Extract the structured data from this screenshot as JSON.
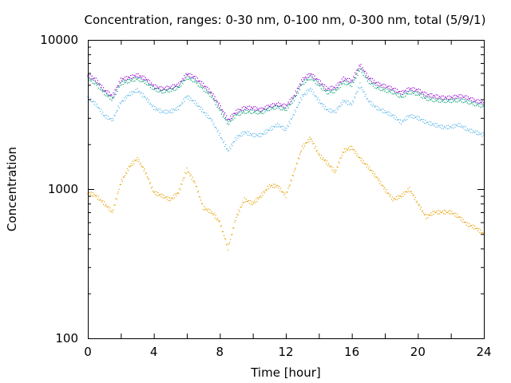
{
  "chart_data": {
    "type": "scatter",
    "title": "Concentration, ranges: 0-30 nm, 0-100 nm, 0-300 nm, total (5/9/1)",
    "xlabel": "Time [hour]",
    "ylabel": "Concentration",
    "xlim": [
      0,
      24
    ],
    "ylim": [
      100,
      10000
    ],
    "yscale": "log",
    "grid": false,
    "legend": "none",
    "x_ticks": [
      0,
      4,
      8,
      12,
      16,
      20,
      24
    ],
    "x_tick_labels": [
      "0",
      "4",
      "8",
      "12",
      "16",
      "20",
      "24"
    ],
    "y_ticks": [
      100,
      1000,
      10000
    ],
    "y_tick_labels": [
      "100",
      "1000",
      "10000"
    ],
    "series": [
      {
        "color": "#9400d3",
        "x": [
          0,
          0.5,
          1,
          1.5,
          2,
          2.5,
          3,
          3.5,
          4,
          4.5,
          5,
          5.5,
          6,
          6.5,
          7,
          7.5,
          8,
          8.5,
          9,
          9.5,
          10,
          10.5,
          11,
          11.5,
          12,
          12.5,
          13,
          13.5,
          14,
          14.5,
          15,
          15.5,
          16,
          16.5,
          17,
          17.5,
          18,
          18.5,
          19,
          19.5,
          20,
          20.5,
          21,
          21.5,
          22,
          22.5,
          23,
          23.5,
          24
        ],
        "y": [
          5800,
          5400,
          4600,
          4200,
          5400,
          5600,
          5800,
          5500,
          4900,
          4700,
          4800,
          5000,
          5900,
          5600,
          5000,
          4400,
          3600,
          2900,
          3300,
          3500,
          3500,
          3400,
          3600,
          3700,
          3600,
          4200,
          5400,
          5900,
          5300,
          4700,
          4800,
          5500,
          5300,
          6800,
          5600,
          5100,
          4900,
          4700,
          4400,
          4700,
          4600,
          4300,
          4200,
          4100,
          4100,
          4200,
          4100,
          3900,
          3800
        ]
      },
      {
        "color": "#009e73",
        "x": [
          0,
          0.5,
          1,
          1.5,
          2,
          2.5,
          3,
          3.5,
          4,
          4.5,
          5,
          5.5,
          6,
          6.5,
          7,
          7.5,
          8,
          8.5,
          9,
          9.5,
          10,
          10.5,
          11,
          11.5,
          12,
          12.5,
          13,
          13.5,
          14,
          14.5,
          15,
          15.5,
          16,
          16.5,
          17,
          17.5,
          18,
          18.5,
          19,
          19.5,
          20,
          20.5,
          21,
          21.5,
          22,
          22.5,
          23,
          23.5,
          24
        ],
        "y": [
          5500,
          5100,
          4400,
          4000,
          5100,
          5300,
          5500,
          5200,
          4700,
          4500,
          4600,
          4800,
          5600,
          5300,
          4700,
          4200,
          3400,
          2750,
          3150,
          3300,
          3300,
          3250,
          3450,
          3550,
          3400,
          4000,
          5100,
          5600,
          5000,
          4450,
          4550,
          5200,
          5000,
          6400,
          5300,
          4800,
          4600,
          4450,
          4150,
          4450,
          4350,
          4050,
          3950,
          3900,
          3900,
          3950,
          3850,
          3700,
          3600
        ]
      },
      {
        "color": "#56b4e9",
        "x": [
          0,
          0.5,
          1,
          1.5,
          2,
          2.5,
          3,
          3.5,
          4,
          4.5,
          5,
          5.5,
          6,
          6.5,
          7,
          7.5,
          8,
          8.5,
          9,
          9.5,
          10,
          10.5,
          11,
          11.5,
          12,
          12.5,
          13,
          13.5,
          14,
          14.5,
          15,
          15.5,
          16,
          16.5,
          17,
          17.5,
          18,
          18.5,
          19,
          19.5,
          20,
          20.5,
          21,
          21.5,
          22,
          22.5,
          23,
          23.5,
          24
        ],
        "y": [
          4100,
          3700,
          3100,
          2900,
          3800,
          4300,
          4600,
          4100,
          3500,
          3300,
          3300,
          3500,
          4200,
          3800,
          3300,
          2900,
          2300,
          1800,
          2200,
          2400,
          2300,
          2300,
          2500,
          2700,
          2500,
          3200,
          4200,
          4700,
          3900,
          3400,
          3300,
          3900,
          3700,
          5000,
          3900,
          3500,
          3300,
          3100,
          2800,
          3100,
          3000,
          2800,
          2700,
          2600,
          2600,
          2700,
          2500,
          2400,
          2300
        ]
      },
      {
        "color": "#e69f00",
        "x": [
          0,
          0.5,
          1,
          1.5,
          2,
          2.5,
          3,
          3.5,
          4,
          4.5,
          5,
          5.5,
          6,
          6.5,
          7,
          7.5,
          8,
          8.5,
          9,
          9.5,
          10,
          10.5,
          11,
          11.5,
          12,
          12.5,
          13,
          13.5,
          14,
          14.5,
          15,
          15.5,
          16,
          16.5,
          17,
          17.5,
          18,
          18.5,
          19,
          19.5,
          20,
          20.5,
          21,
          21.5,
          22,
          22.5,
          23,
          23.5,
          24
        ],
        "y": [
          950,
          900,
          800,
          700,
          1100,
          1400,
          1600,
          1300,
          950,
          900,
          850,
          950,
          1350,
          1100,
          750,
          700,
          600,
          400,
          650,
          850,
          800,
          900,
          1050,
          1050,
          900,
          1300,
          1900,
          2200,
          1700,
          1500,
          1300,
          1800,
          1900,
          1600,
          1400,
          1200,
          1000,
          850,
          900,
          1000,
          800,
          650,
          700,
          700,
          700,
          650,
          580,
          550,
          500
        ]
      }
    ]
  }
}
